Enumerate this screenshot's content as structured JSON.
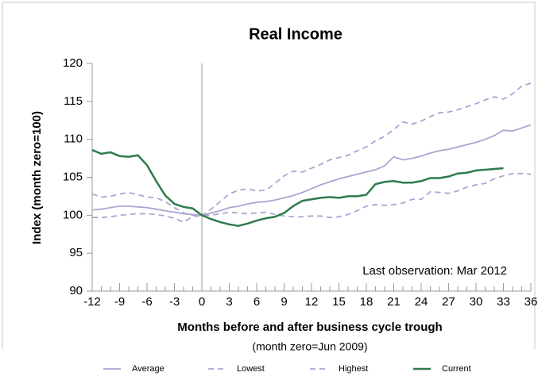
{
  "chart_data": {
    "type": "line",
    "title": "Real Income",
    "y_label": "Index (month zero=100)",
    "x_label": "Months before and after business cycle trough",
    "x_sublabel": "(month zero=Jun 2009)",
    "annotation": "Last observation: Mar 2012",
    "vline_x": 0,
    "x": [
      -12,
      -11,
      -10,
      -9,
      -8,
      -7,
      -6,
      -5,
      -4,
      -3,
      -2,
      -1,
      0,
      1,
      2,
      3,
      4,
      5,
      6,
      7,
      8,
      9,
      10,
      11,
      12,
      13,
      14,
      15,
      16,
      17,
      18,
      19,
      20,
      21,
      22,
      23,
      24,
      25,
      26,
      27,
      28,
      29,
      30,
      31,
      32,
      33,
      34,
      35,
      36
    ],
    "series": [
      {
        "name": "Average",
        "color": "#aaa6d2",
        "dash": false,
        "values": [
          100.7,
          100.8,
          101,
          101.2,
          101.2,
          101.1,
          101,
          100.8,
          100.6,
          100.4,
          100.2,
          100.1,
          100,
          100.3,
          100.6,
          101,
          101.2,
          101.5,
          101.7,
          101.8,
          102,
          102.3,
          102.6,
          103,
          103.5,
          104,
          104.4,
          104.8,
          105.1,
          105.4,
          105.7,
          106,
          106.5,
          107.7,
          107.3,
          107.5,
          107.8,
          108.2,
          108.5,
          108.7,
          109,
          109.3,
          109.6,
          110,
          110.5,
          111.2,
          111.1,
          111.5,
          111.9
        ]
      },
      {
        "name": "Lowest",
        "color": "#aaa6d2",
        "dash": true,
        "values": [
          99.7,
          99.7,
          99.8,
          100,
          100.1,
          100.2,
          100.2,
          100.1,
          99.9,
          99.6,
          99.1,
          99.8,
          100,
          100,
          100.2,
          100.4,
          100.3,
          100.2,
          100.3,
          100.4,
          100.1,
          99.9,
          99.8,
          99.8,
          99.9,
          99.9,
          99.7,
          99.8,
          100.1,
          100.6,
          101.2,
          101.4,
          101.3,
          101.4,
          101.6,
          102.1,
          102.1,
          103.1,
          103,
          102.9,
          103.2,
          103.7,
          104,
          104.2,
          104.8,
          105.2,
          105.5,
          105.5,
          105.4
        ]
      },
      {
        "name": "Highest",
        "color": "#aaa6d2",
        "dash": true,
        "values": [
          102.8,
          102.4,
          102.5,
          102.8,
          103,
          102.7,
          102.4,
          102.3,
          101.8,
          101,
          100.3,
          100,
          100,
          100.8,
          101.8,
          102.8,
          103.3,
          103.5,
          103.2,
          103.3,
          104.2,
          105.2,
          105.8,
          105.7,
          106.2,
          106.7,
          107.3,
          107.6,
          107.9,
          108.5,
          109,
          109.8,
          110.4,
          111.3,
          112.3,
          112,
          112.4,
          113,
          113.5,
          113.6,
          113.9,
          114.3,
          114.7,
          115.2,
          115.6,
          115.3,
          116,
          117,
          117.4
        ]
      },
      {
        "name": "Current",
        "color": "#2e7a4c",
        "dash": false,
        "values": [
          108.6,
          108.1,
          108.3,
          107.8,
          107.7,
          107.9,
          106.6,
          104.5,
          102.6,
          101.5,
          101.1,
          100.9,
          100,
          99.5,
          99.1,
          98.8,
          98.6,
          98.9,
          99.3,
          99.6,
          99.8,
          100.3,
          101.2,
          101.9,
          102.1,
          102.3,
          102.4,
          102.3,
          102.5,
          102.5,
          102.7,
          104.1,
          104.4,
          104.5,
          104.3,
          104.3,
          104.5,
          104.9,
          104.9,
          105.1,
          105.5,
          105.6,
          105.9,
          106,
          106.1,
          106.2,
          null,
          null,
          null
        ]
      }
    ],
    "xlim": [
      -12,
      36
    ],
    "xticks": [
      -12,
      -9,
      -6,
      -3,
      0,
      3,
      6,
      9,
      12,
      15,
      18,
      21,
      24,
      27,
      30,
      33,
      36
    ],
    "ylim": [
      90,
      120
    ],
    "yticks": [
      90,
      95,
      100,
      105,
      110,
      115,
      120
    ],
    "grid": false
  }
}
